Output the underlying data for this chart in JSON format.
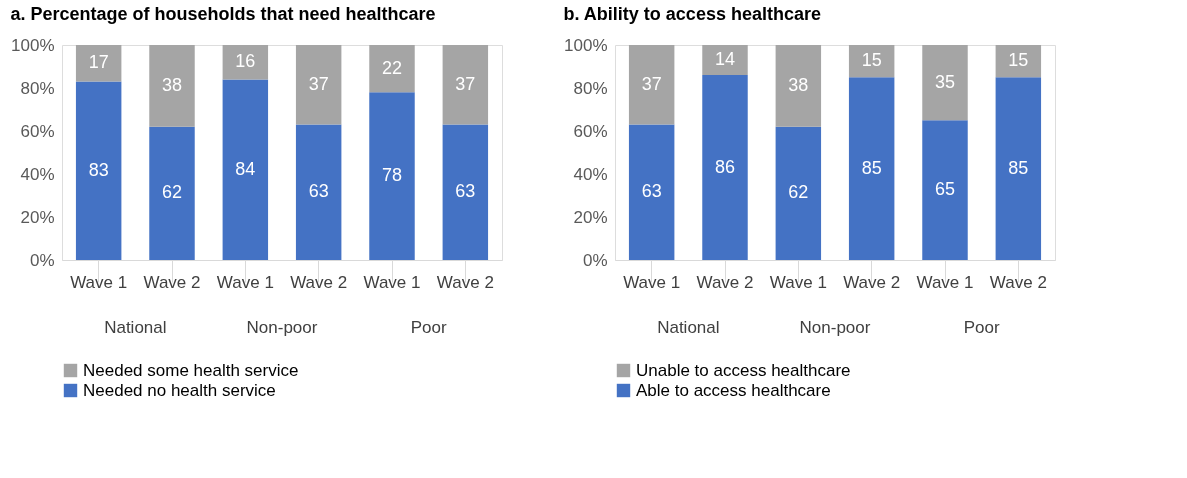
{
  "chart_data": [
    {
      "type": "bar",
      "title": "a. Percentage of households that need healthcare",
      "stacked": true,
      "data_labels": true,
      "legend": "bottom",
      "grid": false,
      "categories": [
        "Wave 1",
        "Wave 2",
        "Wave 1",
        "Wave 2",
        "Wave 1",
        "Wave 2"
      ],
      "annotations": [
        "National",
        "Non-poor",
        "Poor"
      ],
      "ylim": [
        0,
        100
      ],
      "yticks": [
        {
          "value": 0,
          "label": "0%"
        },
        {
          "value": 20,
          "label": "20%"
        },
        {
          "value": 40,
          "label": "40%"
        },
        {
          "value": 60,
          "label": "60%"
        },
        {
          "value": 80,
          "label": "80%"
        },
        {
          "value": 100,
          "label": "100%"
        }
      ],
      "series": [
        {
          "name": "Needed no health service",
          "color": "#4472c4",
          "values": [
            83,
            62,
            84,
            63,
            78,
            63
          ]
        },
        {
          "name": "Needed some health service",
          "color": "#a5a5a5",
          "values": [
            17,
            38,
            16,
            37,
            22,
            37
          ]
        }
      ]
    },
    {
      "type": "bar",
      "title": "b. Ability to access healthcare",
      "stacked": true,
      "data_labels": true,
      "legend": "bottom",
      "grid": false,
      "categories": [
        "Wave 1",
        "Wave 2",
        "Wave 1",
        "Wave 2",
        "Wave 1",
        "Wave 2"
      ],
      "annotations": [
        "National",
        "Non-poor",
        "Poor"
      ],
      "ylim": [
        0,
        100
      ],
      "yticks": [
        {
          "value": 0,
          "label": "0%"
        },
        {
          "value": 20,
          "label": "20%"
        },
        {
          "value": 40,
          "label": "40%"
        },
        {
          "value": 60,
          "label": "60%"
        },
        {
          "value": 80,
          "label": "80%"
        },
        {
          "value": 100,
          "label": "100%"
        }
      ],
      "series": [
        {
          "name": "Able to access healthcare",
          "color": "#4472c4",
          "values": [
            63,
            86,
            62,
            85,
            65,
            85
          ]
        },
        {
          "name": "Unable to access healthcare",
          "color": "#a5a5a5",
          "values": [
            37,
            14,
            38,
            15,
            35,
            15
          ]
        }
      ]
    }
  ]
}
